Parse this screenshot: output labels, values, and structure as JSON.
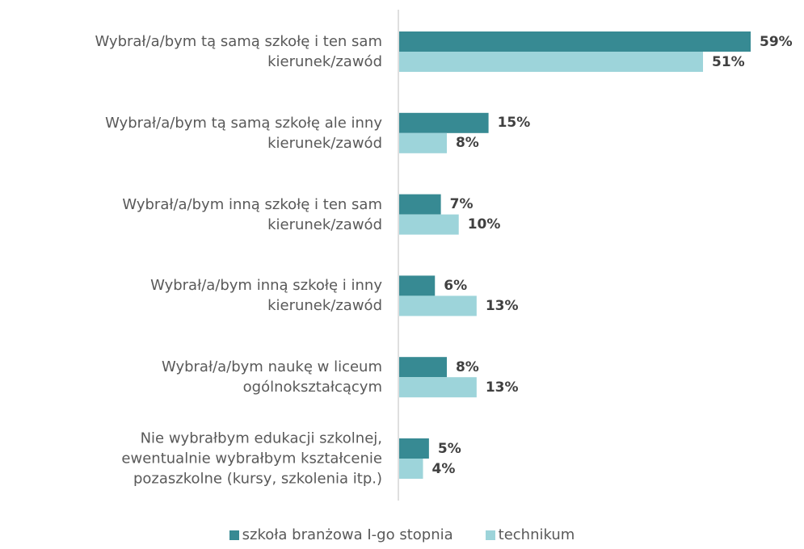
{
  "chart_data": {
    "type": "bar",
    "orientation": "horizontal",
    "categories": [
      "Wybrał/a/bym tą samą szkołę i ten sam\nkierunek/zawód",
      "Wybrał/a/bym tą samą szkołę ale inny\nkierunek/zawód",
      "Wybrał/a/bym inną szkołę i ten sam\nkierunek/zawód",
      "Wybrał/a/bym inną szkołę i inny\nkierunek/zawód",
      "Wybrał/a/bym naukę w liceum\nogólnokształcącym",
      "Nie wybrałbym edukacji szkolnej,\newentualnie wybrałbym kształcenie\npozaszkolne (kursy, szkolenia itp.)"
    ],
    "series": [
      {
        "name": "szkoła branżowa I-go stopnia",
        "color": "#378a93",
        "values": [
          59,
          15,
          7,
          6,
          8,
          5
        ],
        "value_labels": [
          "59%",
          "15%",
          "7%",
          "6%",
          "8%",
          "5%"
        ]
      },
      {
        "name": "technikum",
        "color": "#9dd4da",
        "values": [
          51,
          8,
          10,
          13,
          13,
          4
        ],
        "value_labels": [
          "51%",
          "8%",
          "10%",
          "13%",
          "13%",
          "4%"
        ]
      }
    ],
    "legend": "bottom"
  }
}
